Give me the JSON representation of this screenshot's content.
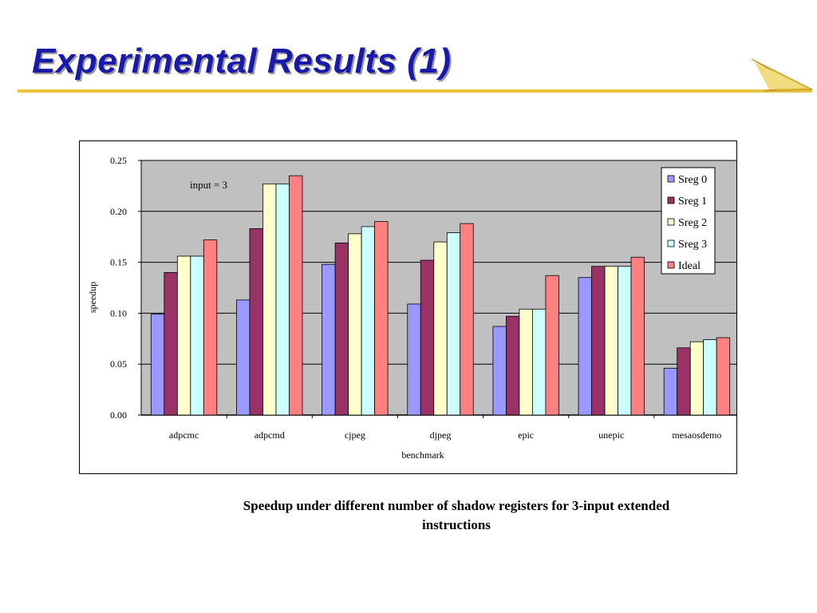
{
  "slide": {
    "title": "Experimental Results (1)",
    "caption": "Speedup under different number of shadow registers for 3-input extended instructions",
    "accent_color": "#e8c440",
    "title_color": "#1a1aa8"
  },
  "chart_data": {
    "type": "bar",
    "categories": [
      "adpcmc",
      "adpcmd",
      "cjpeg",
      "djpeg",
      "epic",
      "unepic",
      "mesaosdemo"
    ],
    "series": [
      {
        "name": "Sreg 0",
        "color": "#9999ff",
        "values": [
          0.099,
          0.113,
          0.148,
          0.109,
          0.087,
          0.135,
          0.046
        ]
      },
      {
        "name": "Sreg 1",
        "color": "#993366",
        "values": [
          0.14,
          0.183,
          0.169,
          0.152,
          0.097,
          0.146,
          0.066
        ]
      },
      {
        "name": "Sreg 2",
        "color": "#ffffcc",
        "values": [
          0.156,
          0.227,
          0.178,
          0.17,
          0.104,
          0.146,
          0.072
        ]
      },
      {
        "name": "Sreg 3",
        "color": "#ccffff",
        "values": [
          0.156,
          0.227,
          0.185,
          0.179,
          0.104,
          0.146,
          0.074
        ]
      },
      {
        "name": "Ideal",
        "color": "#ff8080",
        "values": [
          0.172,
          0.235,
          0.19,
          0.188,
          0.137,
          0.155,
          0.076
        ]
      }
    ],
    "ylim": [
      0,
      0.25
    ],
    "yticks": [
      "0.00",
      "0.05",
      "0.10",
      "0.15",
      "0.20",
      "0.25"
    ],
    "xlabel": "benchmark",
    "ylabel": "speedup",
    "annotation": "input = 3",
    "legend_position": "top-right",
    "grid": true,
    "plot_background": "#c0c0c0"
  }
}
